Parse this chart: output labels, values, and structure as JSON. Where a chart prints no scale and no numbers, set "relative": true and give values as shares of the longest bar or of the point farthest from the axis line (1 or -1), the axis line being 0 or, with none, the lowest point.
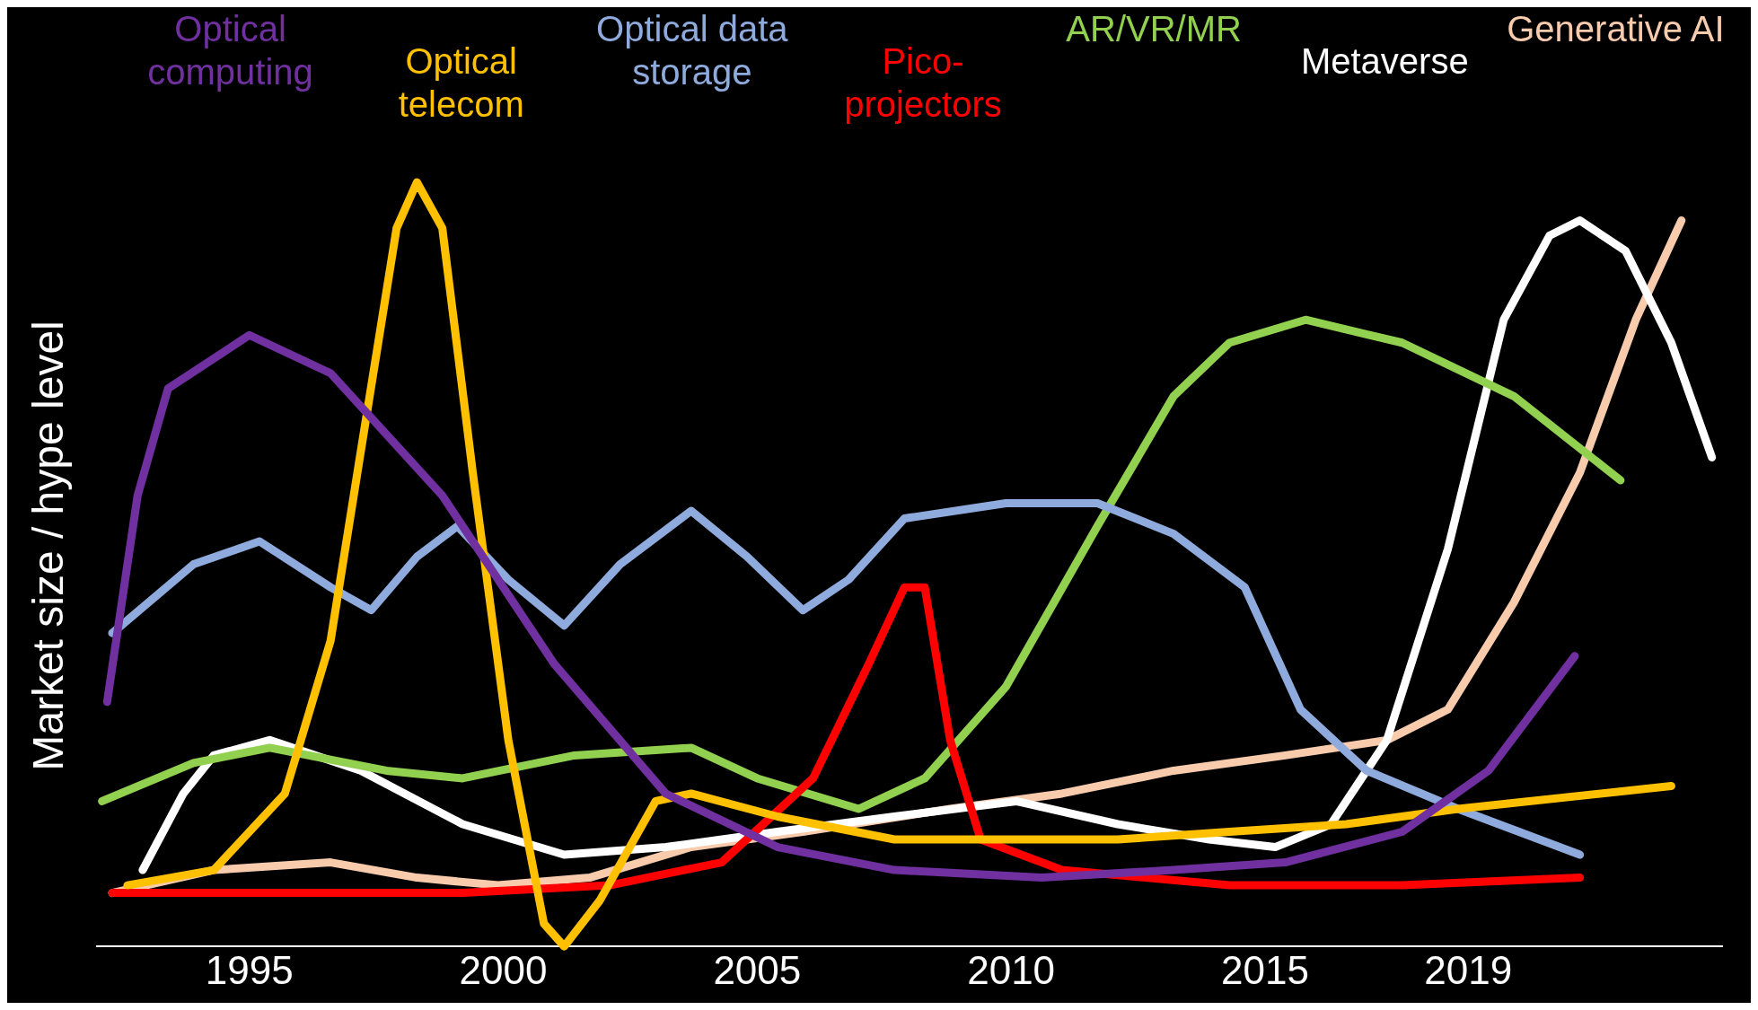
{
  "chart_data": {
    "type": "line",
    "relative": true,
    "ylabel": "Market size / hype level",
    "xlim": [
      1992,
      2024
    ],
    "xticks": [
      1995,
      2000,
      2005,
      2010,
      2015,
      2019
    ],
    "grid": false,
    "legend": false,
    "marker": "none",
    "line_style": "solid",
    "series": [
      {
        "name": "Optical computing",
        "color": "#7030a0",
        "x": [
          1992.2,
          1992.8,
          1993.4,
          1995.0,
          1996.6,
          1998.8,
          2001.0,
          2003.2,
          2005.4,
          2007.7,
          2010.6,
          2013.2,
          2015.4,
          2017.7,
          2019.4,
          2021.1
        ],
        "values": [
          0.32,
          0.59,
          0.73,
          0.8,
          0.75,
          0.59,
          0.37,
          0.2,
          0.13,
          0.1,
          0.09,
          0.1,
          0.11,
          0.15,
          0.23,
          0.38
        ]
      },
      {
        "name": "Optical telecom",
        "color": "#ffc000",
        "x": [
          1992.6,
          1994.3,
          1995.7,
          1996.6,
          1997.2,
          1997.9,
          1998.3,
          1998.8,
          1999.4,
          2000.1,
          2000.8,
          2001.2,
          2001.9,
          2003.0,
          2003.7,
          2005.4,
          2007.7,
          2009.9,
          2012.1,
          2014.3,
          2016.6,
          2018.8,
          2023.0
        ],
        "values": [
          0.08,
          0.1,
          0.2,
          0.4,
          0.65,
          0.94,
          1.0,
          0.94,
          0.62,
          0.27,
          0.03,
          0.0,
          0.06,
          0.19,
          0.2,
          0.17,
          0.14,
          0.14,
          0.14,
          0.15,
          0.16,
          0.18,
          0.21
        ]
      },
      {
        "name": "Optical data storage",
        "color": "#8faadc",
        "x": [
          1992.3,
          1993.9,
          1995.2,
          1996.6,
          1997.4,
          1998.3,
          1999.1,
          2000.1,
          2001.2,
          2002.3,
          2003.7,
          2004.8,
          2005.9,
          2006.8,
          2007.9,
          2009.9,
          2011.7,
          2013.2,
          2014.6,
          2015.7,
          2017.0,
          2018.8,
          2021.2
        ],
        "values": [
          0.41,
          0.5,
          0.53,
          0.47,
          0.44,
          0.51,
          0.55,
          0.48,
          0.42,
          0.5,
          0.57,
          0.51,
          0.44,
          0.48,
          0.56,
          0.58,
          0.58,
          0.54,
          0.47,
          0.31,
          0.23,
          0.18,
          0.12
        ]
      },
      {
        "name": "Pico-projectors",
        "color": "#ff0000",
        "x": [
          1992.3,
          1996.6,
          1999.2,
          2002.1,
          2004.3,
          2006.1,
          2007.2,
          2007.9,
          2008.3,
          2008.8,
          2009.4,
          2011.0,
          2014.3,
          2017.7,
          2021.2
        ],
        "values": [
          0.07,
          0.07,
          0.07,
          0.08,
          0.11,
          0.22,
          0.37,
          0.47,
          0.47,
          0.27,
          0.14,
          0.1,
          0.08,
          0.08,
          0.09
        ]
      },
      {
        "name": "AR/VR/MR",
        "color": "#92d050",
        "x": [
          1992.1,
          1993.9,
          1995.4,
          1997.7,
          1999.2,
          2001.4,
          2003.7,
          2005.0,
          2007.0,
          2008.3,
          2009.9,
          2011.7,
          2013.2,
          2014.3,
          2015.8,
          2017.7,
          2019.9,
          2022.0
        ],
        "values": [
          0.19,
          0.24,
          0.26,
          0.23,
          0.22,
          0.25,
          0.26,
          0.22,
          0.18,
          0.22,
          0.34,
          0.55,
          0.72,
          0.79,
          0.82,
          0.79,
          0.72,
          0.61
        ]
      },
      {
        "name": "Metaverse",
        "color": "#ffffff",
        "x": [
          1992.9,
          1993.7,
          1994.3,
          1995.4,
          1997.2,
          1999.2,
          2001.2,
          2003.2,
          2005.4,
          2007.7,
          2010.1,
          2012.1,
          2013.9,
          2015.2,
          2016.3,
          2017.4,
          2018.6,
          2019.7,
          2020.6,
          2021.2,
          2022.1,
          2023.0,
          2023.8
        ],
        "values": [
          0.1,
          0.2,
          0.25,
          0.27,
          0.23,
          0.16,
          0.12,
          0.13,
          0.15,
          0.17,
          0.19,
          0.16,
          0.14,
          0.13,
          0.16,
          0.27,
          0.52,
          0.82,
          0.93,
          0.95,
          0.91,
          0.79,
          0.64
        ]
      },
      {
        "name": "Generative AI",
        "color": "#f8cbad",
        "x": [
          1992.3,
          1994.3,
          1996.6,
          1998.3,
          1999.9,
          2001.7,
          2003.7,
          2005.9,
          2008.8,
          2011.0,
          2013.2,
          2015.4,
          2017.4,
          2018.6,
          2019.9,
          2021.2,
          2022.3,
          2023.2
        ],
        "values": [
          0.07,
          0.1,
          0.11,
          0.09,
          0.08,
          0.09,
          0.13,
          0.15,
          0.18,
          0.2,
          0.23,
          0.25,
          0.27,
          0.31,
          0.45,
          0.62,
          0.82,
          0.95
        ]
      }
    ]
  }
}
